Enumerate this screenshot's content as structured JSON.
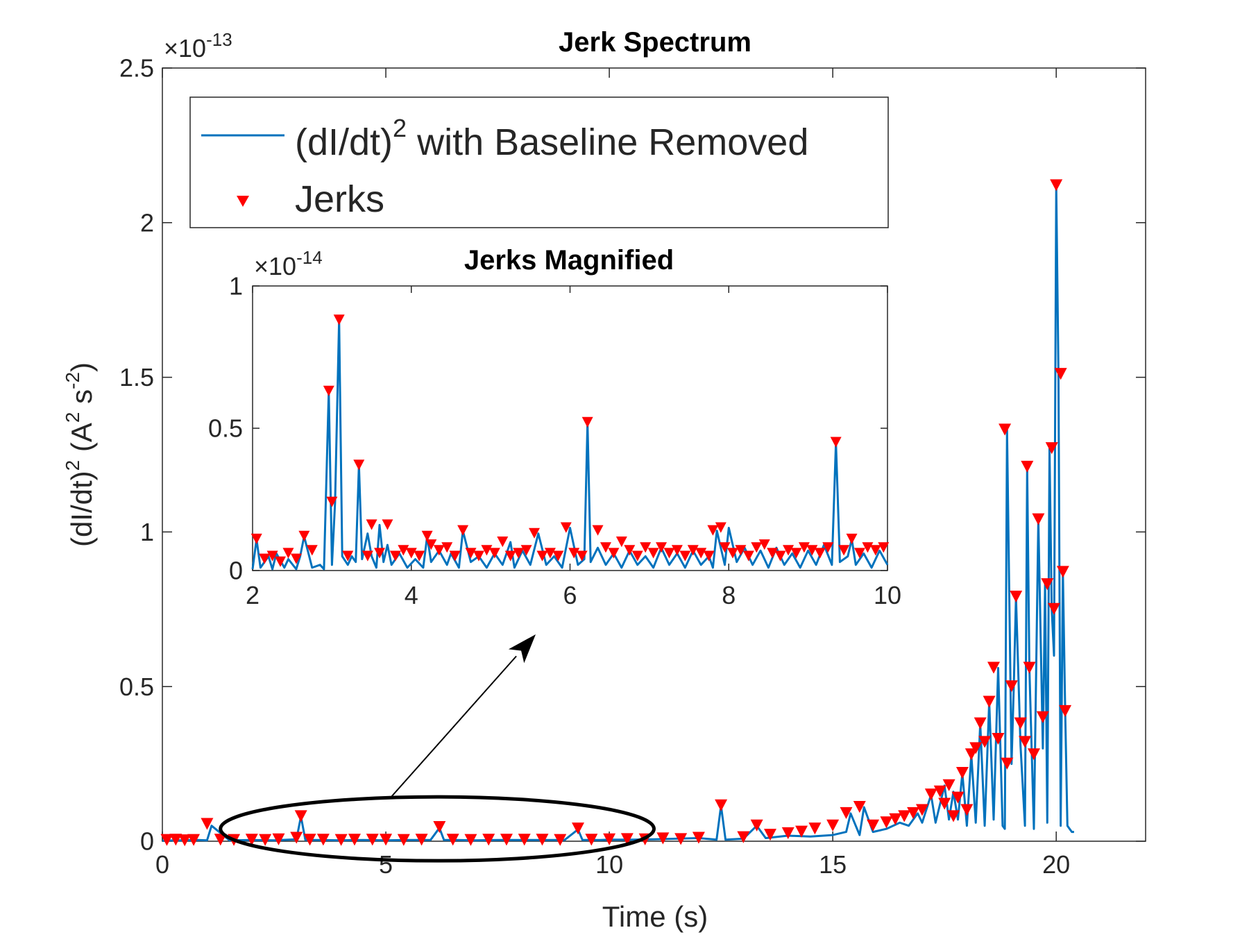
{
  "colors": {
    "line": "#0072BD",
    "marker": "#FF0000",
    "axis": "#262626",
    "annotation": "#000000"
  },
  "chart_data": [
    {
      "type": "line",
      "title": "Jerk Spectrum",
      "xlabel": "Time (s)",
      "ylabel": {
        "base": "(dI/dt)",
        "exp1": "2",
        "unit_open": " (A",
        "exp2": "2",
        "unit_mid": " s",
        "exp3": "-2",
        "unit_close": ")"
      },
      "exponent": {
        "base": "×10",
        "power": "-13"
      },
      "xlim": [
        0,
        22
      ],
      "ylim": [
        0,
        2.5
      ],
      "xticks": [
        0,
        5,
        10,
        15,
        20
      ],
      "xtick_labels": [
        "0",
        "5",
        "10",
        "15",
        "20"
      ],
      "yticks": [
        0,
        0.5,
        1,
        1.5,
        2,
        2.5
      ],
      "ytick_labels": [
        "0",
        "0.5",
        "1",
        "1.5",
        "2",
        "2.5"
      ],
      "legend": {
        "placement": "top-left",
        "line_label_pre": "(dI/dt)",
        "line_label_exp": "2",
        "line_label_post": " with Baseline Removed",
        "marker_label": "Jerks"
      },
      "series": [
        {
          "name": "(dI/dt)^2 with Baseline Removed",
          "style": "line",
          "x": [
            0.0,
            0.4,
            0.8,
            1.0,
            1.1,
            1.5,
            2.0,
            2.5,
            3.0,
            3.1,
            3.2,
            3.5,
            4.0,
            4.5,
            5.0,
            5.5,
            6.0,
            6.2,
            6.3,
            6.6,
            7.0,
            7.5,
            8.0,
            8.5,
            9.0,
            9.3,
            9.4,
            9.8,
            10.0,
            10.5,
            11.0,
            11.5,
            12.0,
            12.4,
            12.5,
            12.6,
            13.0,
            13.3,
            13.5,
            14.0,
            14.5,
            15.0,
            15.3,
            15.4,
            15.6,
            15.7,
            15.9,
            16.2,
            16.5,
            16.7,
            16.9,
            17.0,
            17.2,
            17.3,
            17.5,
            17.6,
            17.7,
            17.8,
            17.9,
            18.0,
            18.1,
            18.2,
            18.3,
            18.4,
            18.5,
            18.6,
            18.7,
            18.8,
            18.85,
            18.9,
            19.0,
            19.05,
            19.1,
            19.2,
            19.3,
            19.35,
            19.4,
            19.5,
            19.6,
            19.7,
            19.75,
            19.8,
            19.85,
            19.9,
            19.95,
            20.0,
            20.05,
            20.1,
            20.15,
            20.2,
            20.25,
            20.3,
            20.35,
            20.4
          ],
          "y": [
            0.002,
            0.003,
            0.004,
            0.003,
            0.05,
            0.003,
            0.004,
            0.003,
            0.006,
            0.08,
            0.004,
            0.004,
            0.003,
            0.004,
            0.003,
            0.004,
            0.004,
            0.043,
            0.004,
            0.004,
            0.003,
            0.004,
            0.004,
            0.004,
            0.004,
            0.038,
            0.004,
            0.004,
            0.005,
            0.005,
            0.006,
            0.008,
            0.01,
            0.005,
            0.115,
            0.005,
            0.008,
            0.05,
            0.01,
            0.018,
            0.015,
            0.02,
            0.03,
            0.09,
            0.02,
            0.11,
            0.03,
            0.04,
            0.06,
            0.05,
            0.09,
            0.06,
            0.15,
            0.06,
            0.18,
            0.07,
            0.16,
            0.07,
            0.22,
            0.05,
            0.28,
            0.06,
            0.38,
            0.05,
            0.45,
            0.07,
            0.56,
            0.05,
            0.04,
            1.33,
            0.25,
            0.5,
            0.79,
            0.31,
            0.05,
            1.21,
            0.56,
            0.04,
            1.04,
            0.3,
            0.83,
            0.06,
            1.27,
            0.75,
            0.6,
            2.12,
            1.51,
            0.05,
            0.87,
            0.42,
            0.05,
            0.04,
            0.03,
            0.03
          ]
        },
        {
          "name": "Jerks",
          "style": "marker-down-triangle",
          "x": [
            0.1,
            0.3,
            0.5,
            0.7,
            1.0,
            1.3,
            1.6,
            2.0,
            2.3,
            2.6,
            3.0,
            3.1,
            3.3,
            3.6,
            4.0,
            4.3,
            4.7,
            5.0,
            5.4,
            5.8,
            6.2,
            6.5,
            6.9,
            7.3,
            7.7,
            8.1,
            8.5,
            8.9,
            9.3,
            9.6,
            10.0,
            10.4,
            10.8,
            11.2,
            11.6,
            12.0,
            12.5,
            13.0,
            13.3,
            13.6,
            14.0,
            14.3,
            14.6,
            15.0,
            15.3,
            15.6,
            15.9,
            16.2,
            16.4,
            16.6,
            16.8,
            17.0,
            17.2,
            17.4,
            17.5,
            17.6,
            17.7,
            17.8,
            17.9,
            18.0,
            18.1,
            18.2,
            18.3,
            18.4,
            18.5,
            18.6,
            18.7,
            18.85,
            18.9,
            19.0,
            19.1,
            19.2,
            19.3,
            19.35,
            19.4,
            19.5,
            19.6,
            19.7,
            19.8,
            19.9,
            19.95,
            20.0,
            20.1,
            20.15,
            20.2
          ],
          "y": [
            0.003,
            0.004,
            0.002,
            0.003,
            0.055,
            0.004,
            0.003,
            0.004,
            0.003,
            0.005,
            0.01,
            0.08,
            0.004,
            0.004,
            0.003,
            0.004,
            0.004,
            0.004,
            0.003,
            0.004,
            0.045,
            0.004,
            0.003,
            0.004,
            0.004,
            0.004,
            0.004,
            0.003,
            0.04,
            0.004,
            0.005,
            0.006,
            0.005,
            0.008,
            0.006,
            0.01,
            0.115,
            0.012,
            0.05,
            0.02,
            0.025,
            0.03,
            0.04,
            0.05,
            0.09,
            0.11,
            0.05,
            0.06,
            0.07,
            0.08,
            0.09,
            0.1,
            0.15,
            0.16,
            0.12,
            0.18,
            0.08,
            0.14,
            0.22,
            0.1,
            0.28,
            0.3,
            0.38,
            0.32,
            0.45,
            0.56,
            0.33,
            1.33,
            0.25,
            0.5,
            0.79,
            0.38,
            0.32,
            1.21,
            0.56,
            0.28,
            1.04,
            0.4,
            0.83,
            1.27,
            0.75,
            2.12,
            1.51,
            0.87,
            0.42
          ]
        }
      ],
      "annotations": [
        {
          "type": "ellipse",
          "x_range": [
            1.3,
            11.0
          ],
          "y_center": 0.04
        },
        {
          "type": "arrow",
          "from": [
            5.1,
            0.14
          ],
          "to": "inset"
        }
      ]
    },
    {
      "type": "line",
      "title": "Jerks Magnified",
      "inset": true,
      "exponent": {
        "base": "×10",
        "power": "-14"
      },
      "xlim": [
        2,
        10
      ],
      "ylim": [
        0,
        1
      ],
      "xticks": [
        2,
        4,
        6,
        8,
        10
      ],
      "xtick_labels": [
        "2",
        "4",
        "6",
        "8",
        "10"
      ],
      "yticks": [
        0,
        0.5,
        1
      ],
      "ytick_labels": [
        "0",
        "0.5",
        "1"
      ],
      "series": [
        {
          "name": "(dI/dt)^2 with Baseline Removed",
          "style": "line",
          "x": [
            2.0,
            2.05,
            2.1,
            2.2,
            2.25,
            2.3,
            2.4,
            2.45,
            2.55,
            2.6,
            2.65,
            2.75,
            2.85,
            2.9,
            2.96,
            3.0,
            3.04,
            3.09,
            3.13,
            3.2,
            3.25,
            3.3,
            3.34,
            3.38,
            3.45,
            3.5,
            3.56,
            3.6,
            3.65,
            3.7,
            3.75,
            3.85,
            3.95,
            4.05,
            4.15,
            4.2,
            4.25,
            4.35,
            4.45,
            4.5,
            4.6,
            4.65,
            4.75,
            4.85,
            4.95,
            5.05,
            5.15,
            5.25,
            5.3,
            5.4,
            5.5,
            5.6,
            5.7,
            5.8,
            5.9,
            6.0,
            6.1,
            6.18,
            6.22,
            6.26,
            6.35,
            6.45,
            6.55,
            6.65,
            6.75,
            6.85,
            6.95,
            7.05,
            7.15,
            7.25,
            7.35,
            7.45,
            7.55,
            7.65,
            7.75,
            7.8,
            7.85,
            7.95,
            8.0,
            8.1,
            8.2,
            8.3,
            8.4,
            8.5,
            8.6,
            8.7,
            8.8,
            8.9,
            9.0,
            9.1,
            9.2,
            9.3,
            9.35,
            9.4,
            9.5,
            9.55,
            9.6,
            9.7,
            9.8,
            9.9,
            10.0
          ],
          "y": [
            0.005,
            0.11,
            0.01,
            0.05,
            0.005,
            0.06,
            0.01,
            0.04,
            0.005,
            0.05,
            0.12,
            0.01,
            0.02,
            0.005,
            0.63,
            0.02,
            0.24,
            0.88,
            0.05,
            0.02,
            0.05,
            0.03,
            0.37,
            0.04,
            0.13,
            0.05,
            0.01,
            0.16,
            0.03,
            0.09,
            0.02,
            0.06,
            0.01,
            0.04,
            0.01,
            0.12,
            0.03,
            0.07,
            0.02,
            0.06,
            0.01,
            0.14,
            0.03,
            0.05,
            0.01,
            0.06,
            0.02,
            0.1,
            0.01,
            0.07,
            0.02,
            0.13,
            0.02,
            0.05,
            0.01,
            0.15,
            0.02,
            0.04,
            0.52,
            0.03,
            0.08,
            0.02,
            0.06,
            0.01,
            0.07,
            0.02,
            0.05,
            0.01,
            0.08,
            0.02,
            0.06,
            0.01,
            0.07,
            0.02,
            0.05,
            0.01,
            0.14,
            0.02,
            0.15,
            0.03,
            0.08,
            0.02,
            0.07,
            0.01,
            0.08,
            0.02,
            0.06,
            0.01,
            0.07,
            0.02,
            0.09,
            0.02,
            0.45,
            0.03,
            0.05,
            0.11,
            0.02,
            0.06,
            0.01,
            0.07,
            0.02
          ]
        },
        {
          "name": "Jerks",
          "style": "marker-down-triangle",
          "x": [
            2.05,
            2.15,
            2.25,
            2.35,
            2.45,
            2.55,
            2.65,
            2.75,
            2.96,
            3.0,
            3.09,
            3.2,
            3.34,
            3.45,
            3.5,
            3.6,
            3.7,
            3.8,
            3.9,
            4.0,
            4.1,
            4.2,
            4.25,
            4.35,
            4.45,
            4.55,
            4.65,
            4.75,
            4.85,
            4.95,
            5.05,
            5.15,
            5.25,
            5.35,
            5.45,
            5.55,
            5.65,
            5.75,
            5.85,
            5.95,
            6.05,
            6.15,
            6.22,
            6.35,
            6.45,
            6.55,
            6.65,
            6.75,
            6.85,
            6.95,
            7.05,
            7.15,
            7.25,
            7.35,
            7.45,
            7.55,
            7.65,
            7.75,
            7.8,
            7.9,
            7.95,
            8.05,
            8.15,
            8.25,
            8.35,
            8.45,
            8.55,
            8.65,
            8.75,
            8.85,
            8.95,
            9.05,
            9.15,
            9.25,
            9.35,
            9.45,
            9.55,
            9.65,
            9.75,
            9.85,
            9.95
          ],
          "y": [
            0.11,
            0.04,
            0.05,
            0.03,
            0.06,
            0.04,
            0.12,
            0.07,
            0.63,
            0.24,
            0.88,
            0.05,
            0.37,
            0.05,
            0.16,
            0.06,
            0.16,
            0.05,
            0.07,
            0.06,
            0.05,
            0.12,
            0.09,
            0.07,
            0.08,
            0.05,
            0.14,
            0.06,
            0.05,
            0.07,
            0.06,
            0.1,
            0.05,
            0.06,
            0.07,
            0.13,
            0.05,
            0.06,
            0.05,
            0.15,
            0.06,
            0.05,
            0.52,
            0.14,
            0.08,
            0.06,
            0.1,
            0.07,
            0.05,
            0.08,
            0.06,
            0.08,
            0.06,
            0.07,
            0.05,
            0.07,
            0.06,
            0.05,
            0.14,
            0.15,
            0.08,
            0.06,
            0.07,
            0.05,
            0.08,
            0.09,
            0.06,
            0.05,
            0.07,
            0.06,
            0.08,
            0.07,
            0.06,
            0.08,
            0.45,
            0.07,
            0.11,
            0.06,
            0.08,
            0.07,
            0.08
          ]
        }
      ]
    }
  ]
}
